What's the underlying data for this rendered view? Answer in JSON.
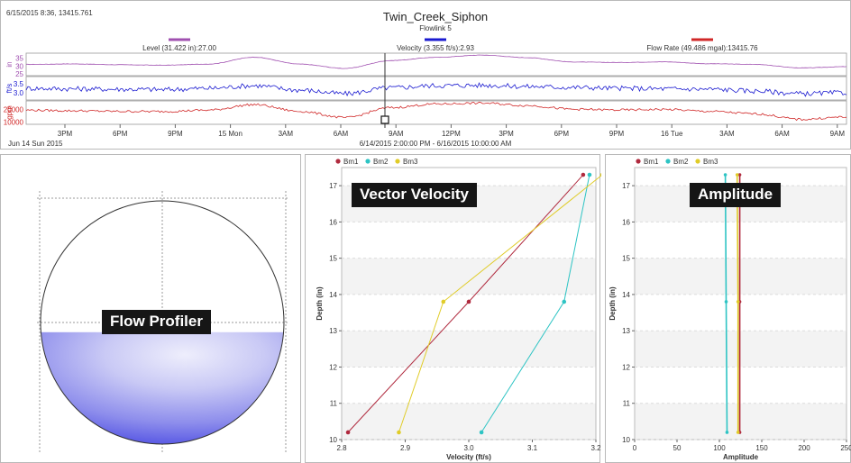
{
  "header": {
    "timestamp": "6/15/2015 8:36, 13415.761",
    "title": "Twin_Creek_Siphon",
    "subtitle": "Flowlink 5",
    "date_range": "6/14/2015 2:00:00 PM - 6/16/2015 10:00:00 AM",
    "start_label": "Jun 14 Sun 2015"
  },
  "callouts": {
    "flow_profiler": "Flow Profiler",
    "vector_velocity": "Vector Velocity",
    "amplitude": "Amplitude"
  },
  "colors": {
    "level": "#a050b0",
    "velocity": "#1a1ad0",
    "flow": "#d02828",
    "bm1": "#b02a3e",
    "bm2": "#2ec4c4",
    "bm3": "#e0cc28",
    "fill_deep": "#5a5ae6",
    "fill_light": "#e6e6fa"
  },
  "chart_data": [
    {
      "type": "line",
      "time_axis_ticks": [
        "3PM",
        "6PM",
        "9PM",
        "15 Mon",
        "3AM",
        "6AM",
        "9AM",
        "12PM",
        "3PM",
        "6PM",
        "9PM",
        "16 Tue",
        "3AM",
        "6AM",
        "9AM"
      ],
      "cursor_time": "9AM",
      "strips": [
        {
          "name": "Level (31.422 in):27.00",
          "unit": "in",
          "color": "#a050b0",
          "yticks": [
            "35",
            "30",
            "25"
          ],
          "ylim": [
            24,
            38
          ],
          "series": [
            [
              0,
              31
            ],
            [
              3,
              31.3
            ],
            [
              6,
              30.8
            ],
            [
              9,
              30.5
            ],
            [
              12,
              31.2
            ],
            [
              15,
              35.5
            ],
            [
              18,
              31.2
            ],
            [
              21,
              28.5
            ],
            [
              24,
              33.4
            ],
            [
              27,
              35.4
            ],
            [
              30,
              36.8
            ],
            [
              33,
              35.2
            ],
            [
              36,
              32.5
            ],
            [
              39,
              32.2
            ],
            [
              42,
              32.6
            ],
            [
              45,
              31.4
            ],
            [
              48,
              31
            ],
            [
              51,
              28.8
            ],
            [
              54,
              29.6
            ]
          ]
        },
        {
          "name": "Velocity (3.355 ft/s):2.93",
          "unit": "ft/s",
          "color": "#1a1ad0",
          "yticks": [
            "3.5",
            "3.0"
          ],
          "ylim": [
            2.6,
            3.9
          ],
          "series": [
            [
              0,
              3.25
            ],
            [
              3,
              3.22
            ],
            [
              6,
              3.2
            ],
            [
              9,
              3.18
            ],
            [
              12,
              3.25
            ],
            [
              15,
              3.4
            ],
            [
              18,
              3.15
            ],
            [
              21,
              2.95
            ],
            [
              24,
              3.28
            ],
            [
              27,
              3.4
            ],
            [
              30,
              3.42
            ],
            [
              33,
              3.35
            ],
            [
              36,
              3.3
            ],
            [
              39,
              3.25
            ],
            [
              42,
              3.22
            ],
            [
              45,
              3.2
            ],
            [
              48,
              3.1
            ],
            [
              51,
              2.95
            ],
            [
              54,
              3.0
            ]
          ]
        },
        {
          "name": "Flow Rate (49.486 mgal):13415.76",
          "unit": "gpm",
          "color": "#d02828",
          "yticks": [
            "20000",
            "10000"
          ],
          "ylim": [
            8000,
            27000
          ],
          "series": [
            [
              0,
              19500
            ],
            [
              3,
              19000
            ],
            [
              6,
              18500
            ],
            [
              9,
              18400
            ],
            [
              12,
              19500
            ],
            [
              15,
              24000
            ],
            [
              18,
              18500
            ],
            [
              21,
              13415
            ],
            [
              24,
              21500
            ],
            [
              27,
              24500
            ],
            [
              30,
              25200
            ],
            [
              33,
              23200
            ],
            [
              36,
              20200
            ],
            [
              39,
              19600
            ],
            [
              42,
              20100
            ],
            [
              45,
              18500
            ],
            [
              48,
              16500
            ],
            [
              51,
              12000
            ],
            [
              54,
              14000
            ]
          ]
        }
      ]
    },
    {
      "type": "area",
      "title": "Flow Profiler",
      "fill_fraction": 0.46
    },
    {
      "type": "line",
      "title": "Vector Velocity",
      "xlabel": "Velocity (ft/s)",
      "ylabel": "Depth (in)",
      "xlim": [
        2.8,
        3.2
      ],
      "ylim": [
        10,
        17.5
      ],
      "xticks": [
        2.8,
        2.9,
        3.0,
        3.1,
        3.2
      ],
      "xtick_labels": [
        "2.8",
        "2.9",
        "3.0",
        "3.1",
        "3.2"
      ],
      "yticks": [
        10,
        11,
        12,
        13,
        14,
        15,
        16,
        17
      ],
      "series": [
        {
          "name": "Bm1",
          "color": "#b02a3e",
          "points": [
            [
              2.81,
              10.2
            ],
            [
              3.0,
              13.8
            ],
            [
              3.18,
              17.3
            ]
          ]
        },
        {
          "name": "Bm2",
          "color": "#2ec4c4",
          "points": [
            [
              3.02,
              10.2
            ],
            [
              3.15,
              13.8
            ],
            [
              3.19,
              17.3
            ]
          ]
        },
        {
          "name": "Bm3",
          "color": "#e0cc28",
          "points": [
            [
              2.89,
              10.2
            ],
            [
              2.96,
              13.8
            ],
            [
              3.21,
              17.3
            ]
          ]
        }
      ]
    },
    {
      "type": "line",
      "title": "Amplitude",
      "xlabel": "Amplitude",
      "ylabel": "Depth (in)",
      "xlim": [
        0,
        250
      ],
      "ylim": [
        10,
        17.5
      ],
      "xticks": [
        0,
        50,
        100,
        150,
        200,
        250
      ],
      "xtick_labels": [
        "0",
        "50",
        "100",
        "150",
        "200",
        "250"
      ],
      "yticks": [
        10,
        11,
        12,
        13,
        14,
        15,
        16,
        17
      ],
      "series": [
        {
          "name": "Bm1",
          "color": "#b02a3e",
          "points": [
            [
              124,
              10.2
            ],
            [
              124,
              13.8
            ],
            [
              124,
              17.3
            ]
          ]
        },
        {
          "name": "Bm2",
          "color": "#2ec4c4",
          "points": [
            [
              109,
              10.2
            ],
            [
              108,
              13.8
            ],
            [
              107,
              17.3
            ]
          ]
        },
        {
          "name": "Bm3",
          "color": "#e0cc28",
          "points": [
            [
              122,
              10.2
            ],
            [
              122,
              13.8
            ],
            [
              121,
              17.3
            ]
          ]
        }
      ]
    }
  ]
}
